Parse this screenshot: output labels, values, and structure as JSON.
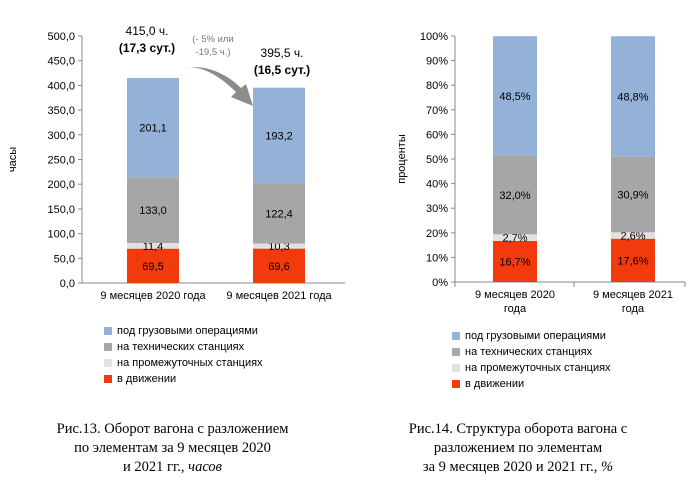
{
  "colors": {
    "in_motion": "#f23a0c",
    "intermediate": "#e2e2e2",
    "technical": "#a6a6a6",
    "cargo": "#94b2d8",
    "arrow": "#7f7f7f"
  },
  "legend": [
    {
      "key": "cargo",
      "label": "под грузовыми операциями"
    },
    {
      "key": "technical",
      "label": "на технических станциях"
    },
    {
      "key": "intermediate",
      "label": "на промежуточных станциях"
    },
    {
      "key": "in_motion",
      "label": "в движении"
    }
  ],
  "chart_data": [
    {
      "type": "bar",
      "stacked": true,
      "categories": [
        "9 месяцев 2020 года",
        "9 месяцев 2021 года"
      ],
      "series": [
        {
          "name": "в движении",
          "key": "in_motion",
          "values": [
            69.5,
            69.6
          ],
          "labels": [
            "69,5",
            "69,6"
          ]
        },
        {
          "name": "на промежуточных станциях",
          "key": "intermediate",
          "values": [
            11.4,
            10.3
          ],
          "labels": [
            "11,4",
            "10,3"
          ]
        },
        {
          "name": "на технических станциях",
          "key": "technical",
          "values": [
            133.0,
            122.4
          ],
          "labels": [
            "133,0",
            "122,4"
          ]
        },
        {
          "name": "под грузовыми операциями",
          "key": "cargo",
          "values": [
            201.1,
            193.2
          ],
          "labels": [
            "201,1",
            "193,2"
          ]
        }
      ],
      "ylabel": "часы",
      "ylim": [
        0,
        500
      ],
      "yticks": [
        "0,0",
        "50,0",
        "100,0",
        "150,0",
        "200,0",
        "250,0",
        "300,0",
        "350,0",
        "400,0",
        "450,0",
        "500,0"
      ],
      "grid": false,
      "legend_position": "bottom",
      "totals": [
        {
          "line1": "415,0 ч.",
          "line2": "(17,3 сут.)"
        },
        {
          "line1": "395,5 ч.",
          "line2": "(16,5 сут.)"
        }
      ],
      "change_annotation": {
        "line1": "(- 5% или",
        "line2": "-19,5 ч.)"
      },
      "caption": [
        "Рис.13. Оборот вагона с разложением",
        "по элементам  за 9 месяцев 2020",
        "и 2021 гг., ",
        "часов"
      ]
    },
    {
      "type": "bar",
      "stacked": true,
      "percent": true,
      "categories": [
        [
          "9 месяцев 2020",
          "года"
        ],
        [
          "9 месяцев 2021",
          "года"
        ]
      ],
      "series": [
        {
          "name": "в движении",
          "key": "in_motion",
          "values": [
            16.7,
            17.6
          ],
          "labels": [
            "16,7%",
            "17,6%"
          ]
        },
        {
          "name": "на промежуточных станциях",
          "key": "intermediate",
          "values": [
            2.7,
            2.6
          ],
          "labels": [
            "2,7%",
            "2,6%"
          ]
        },
        {
          "name": "на технических станциях",
          "key": "technical",
          "values": [
            32.0,
            30.9
          ],
          "labels": [
            "32,0%",
            "30,9%"
          ]
        },
        {
          "name": "под грузовыми операциями",
          "key": "cargo",
          "values": [
            48.5,
            48.8
          ],
          "labels": [
            "48,5%",
            "48,8%"
          ]
        }
      ],
      "ylabel": "проценты",
      "ylim": [
        0,
        100
      ],
      "yticks": [
        "0%",
        "10%",
        "20%",
        "30%",
        "40%",
        "50%",
        "60%",
        "70%",
        "80%",
        "90%",
        "100%"
      ],
      "grid": false,
      "legend_position": "bottom",
      "caption": [
        "Рис.14. Структура оборота вагона с",
        "разложением по элементам",
        "за 9 месяцев 2020 и 2021 гг., ",
        "%"
      ]
    }
  ]
}
